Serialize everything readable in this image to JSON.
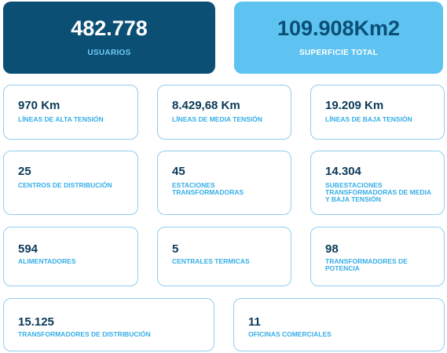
{
  "summary": {
    "users": {
      "value": "482.778",
      "label": "USUARIOS"
    },
    "area": {
      "value": "109.908Km2",
      "label": "SUPERFICIE TOTAL"
    }
  },
  "cards": [
    {
      "value": "970 Km",
      "label": "LÍNEAS DE ALTA TENSIÓN"
    },
    {
      "value": "8.429,68 Km",
      "label": "LÍNEAS DE MEDIA TENSIÓN"
    },
    {
      "value": "19.209 Km",
      "label": "LÍNEAS DE BAJA TENSIÓN"
    },
    {
      "value": "25",
      "label": "CENTROS DE DISTRIBUCIÓN"
    },
    {
      "value": "45",
      "label": "ESTACIONES TRANSFORMADORAS"
    },
    {
      "value": "14.304",
      "label": "SUBESTACIONES TRANSFORMADORAS DE MEDIA Y BAJA TENSIÓN"
    },
    {
      "value": "594",
      "label": "ALIMENTADORES"
    },
    {
      "value": "5",
      "label": "CENTRALES TERMICAS"
    },
    {
      "value": "98",
      "label": "TRANSFORMADORES DE POTENCIA"
    },
    {
      "value": "15.125",
      "label": "TRANSFORMADORES DE DISTRIBUCIÓN"
    },
    {
      "value": "11",
      "label": "OFICINAS COMERCIALES"
    }
  ]
}
